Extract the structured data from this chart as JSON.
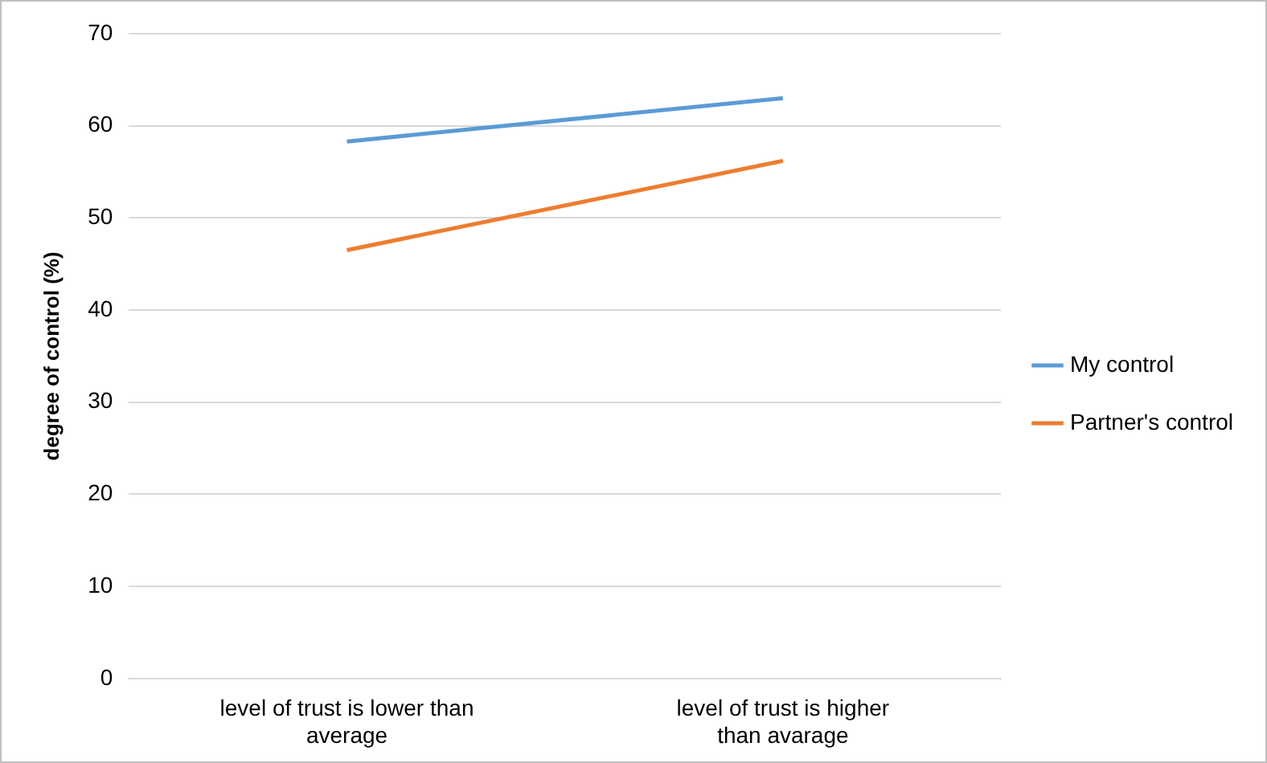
{
  "chart_data": {
    "type": "line",
    "ylabel": "degree of control (%)",
    "categories": [
      "level of trust is lower than average",
      "level of trust is higher than avarage"
    ],
    "series": [
      {
        "name": "My control",
        "color": "#5b9bd5",
        "values": [
          58.3,
          63.0
        ]
      },
      {
        "name": "Partner's control",
        "color": "#ed7d31",
        "values": [
          46.5,
          56.2
        ]
      }
    ],
    "ylim": [
      0,
      70
    ],
    "yticks": [
      0,
      10,
      20,
      30,
      40,
      50,
      60,
      70
    ],
    "grid": "y",
    "legend": "right",
    "marker": "none",
    "line_style": "solid"
  }
}
